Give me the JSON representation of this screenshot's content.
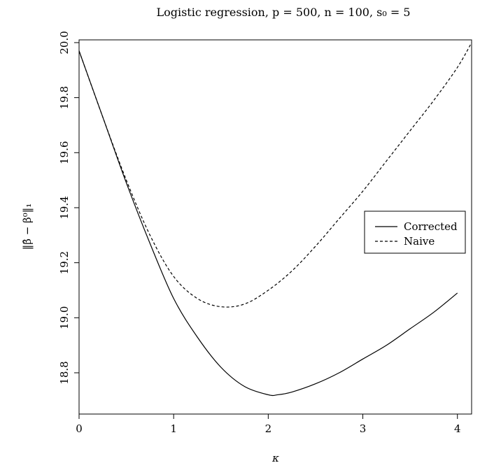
{
  "chart_data": {
    "type": "line",
    "title": "Logistic regression, p = 500, n = 100, s₀ = 5",
    "xlabel": "κ",
    "ylabel": "‖β̂ − β⁰‖₁",
    "xlim": [
      0,
      4.15
    ],
    "ylim": [
      18.65,
      20.01
    ],
    "xticks": [
      0,
      1,
      2,
      3,
      4
    ],
    "yticks": [
      18.8,
      19.0,
      19.2,
      19.4,
      19.6,
      19.8,
      20.0
    ],
    "ytick_labels": [
      "18.8",
      "19.0",
      "19.2",
      "19.4",
      "19.6",
      "19.8",
      "20.0"
    ],
    "grid": false,
    "legend": "right",
    "series": [
      {
        "name": "Corrected",
        "line_style": "solid",
        "x": [
          0,
          0.25,
          0.5,
          0.75,
          1.0,
          1.25,
          1.5,
          1.75,
          2.0,
          2.1,
          2.25,
          2.5,
          2.75,
          3.0,
          3.25,
          3.5,
          3.75,
          4.0
        ],
        "y": [
          19.97,
          19.73,
          19.49,
          19.27,
          19.07,
          18.93,
          18.82,
          18.75,
          18.72,
          18.72,
          18.73,
          18.76,
          18.8,
          18.85,
          18.9,
          18.96,
          19.02,
          19.09
        ]
      },
      {
        "name": "Naive",
        "line_style": "dashed",
        "x": [
          0,
          0.25,
          0.5,
          0.75,
          1.0,
          1.25,
          1.5,
          1.75,
          2.0,
          2.25,
          2.5,
          2.75,
          3.0,
          3.25,
          3.5,
          3.75,
          4.0,
          4.15
        ],
        "y": [
          19.97,
          19.73,
          19.5,
          19.3,
          19.15,
          19.07,
          19.04,
          19.05,
          19.1,
          19.17,
          19.26,
          19.36,
          19.46,
          19.57,
          19.68,
          19.79,
          19.91,
          20.0
        ]
      }
    ]
  }
}
